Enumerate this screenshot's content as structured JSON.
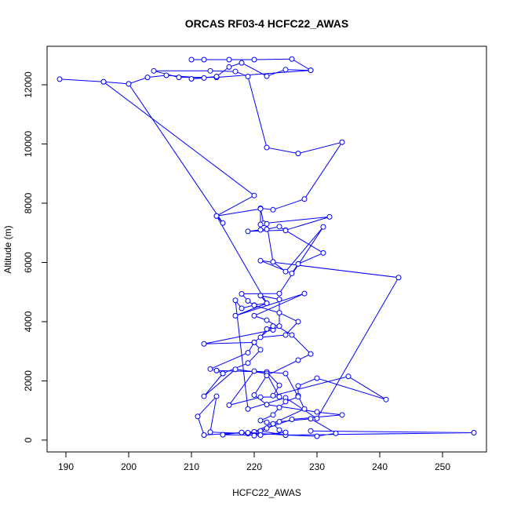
{
  "chart_data": {
    "type": "line",
    "title": "ORCAS RF03-4 HCFC22_AWAS",
    "xlabel": "HCFC22_AWAS",
    "ylabel": "Altitude (m)",
    "xlim": [
      187,
      257
    ],
    "ylim": [
      -400,
      13300
    ],
    "xticks": [
      190,
      200,
      210,
      220,
      230,
      240,
      250
    ],
    "yticks": [
      0,
      2000,
      4000,
      6000,
      8000,
      10000,
      12000
    ],
    "series_color": "#0000ff",
    "marker": "open-circle",
    "grid": false,
    "legend": "none",
    "series": [
      {
        "x": [
          210,
          212,
          216,
          220,
          226,
          229,
          214,
          208,
          204,
          213,
          217,
          219,
          222,
          227,
          234,
          228,
          223,
          221,
          221.5,
          232,
          225,
          219,
          221,
          222,
          224,
          225,
          231,
          227,
          226,
          221,
          243,
          230,
          225,
          219,
          217,
          218,
          220,
          222,
          221,
          224,
          224,
          223,
          212,
          220,
          221,
          219,
          215,
          214,
          222,
          224,
          223,
          235,
          241,
          230,
          227,
          227,
          228,
          220,
          212,
          211,
          214,
          213,
          219,
          221,
          225,
          230,
          233,
          229,
          224,
          220,
          215,
          218,
          225,
          255,
          229
        ],
        "y": [
          12850,
          12850,
          12850,
          12850,
          12870,
          12490,
          12250,
          12250,
          12470,
          12470,
          12450,
          12280,
          9880,
          9680,
          10060,
          8140,
          7780,
          7830,
          7320,
          7540,
          7090,
          7050,
          7100,
          7120,
          7210,
          7080,
          6320,
          5950,
          5630,
          6060,
          5490,
          730,
          1430,
          1050,
          4720,
          4450,
          4560,
          4620,
          4880,
          4750,
          3850,
          3720,
          3250,
          3300,
          3050,
          2600,
          2250,
          2350,
          2300,
          1850,
          1500,
          2150,
          1370,
          2090,
          1830,
          1500,
          1050,
          280,
          170,
          800,
          1480,
          270,
          220,
          310,
          170,
          130,
          230,
          720,
          620,
          170,
          180,
          260,
          170,
          250,
          310
        ]
      },
      {
        "x": [
          189,
          196,
          200,
          203,
          206,
          212,
          210,
          214,
          216,
          218,
          222,
          225,
          229
        ],
        "y": [
          12190,
          12100,
          12030,
          12250,
          12320,
          12230,
          12200,
          12280,
          12600,
          12740,
          12290,
          12510,
          12490
        ]
      },
      {
        "x": [
          196,
          220,
          214,
          221,
          221,
          222,
          223,
          225,
          231,
          224,
          218,
          219,
          220,
          224,
          227,
          225,
          221,
          222,
          223,
          220,
          219,
          213,
          214,
          215,
          212,
          217,
          222,
          224,
          221,
          216,
          220,
          225,
          227,
          225,
          224,
          223,
          221,
          222,
          223,
          224,
          225,
          220
        ],
        "y": [
          12100,
          8260,
          7570,
          7810,
          7280,
          7300,
          6020,
          5690,
          7200,
          4950,
          4940,
          4700,
          4550,
          4300,
          4000,
          3550,
          3470,
          3750,
          3850,
          3300,
          2950,
          2400,
          2350,
          2250,
          1480,
          2390,
          2250,
          1460,
          1450,
          1180,
          2330,
          2250,
          1460,
          1300,
          1100,
          850,
          660,
          600,
          550,
          340,
          260,
          150
        ]
      },
      {
        "x": [
          200,
          215,
          214,
          222,
          217,
          228,
          220,
          222,
          226,
          229,
          227,
          222,
          220,
          222,
          230,
          234,
          226,
          222,
          219,
          221
        ],
        "y": [
          12030,
          7330,
          7570,
          4620,
          4200,
          4950,
          4200,
          4050,
          3550,
          2910,
          2700,
          2180,
          1520,
          1200,
          950,
          850,
          700,
          400,
          250,
          170
        ]
      }
    ]
  }
}
